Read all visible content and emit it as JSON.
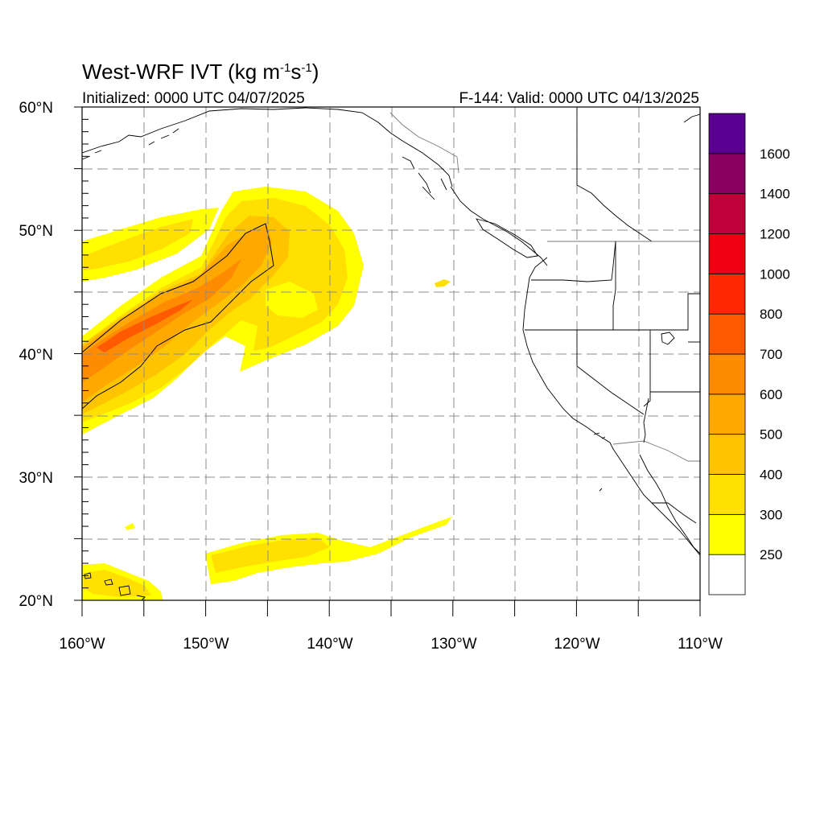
{
  "title": "West-WRF IVT (kg m",
  "title_sup1": "-1",
  "title_mid": "s",
  "title_sup2": "-1",
  "title_end": ")",
  "initialized": "Initialized: 0000 UTC 04/07/2025",
  "valid": "F-144: Valid: 0000 UTC 04/13/2025",
  "map": {
    "lon_range": [
      -160,
      -110
    ],
    "lat_range": [
      20,
      60
    ],
    "lon_labels": [
      "160°W",
      "150°W",
      "140°W",
      "130°W",
      "120°W",
      "110°W"
    ],
    "lat_labels": [
      "20°N",
      "30°N",
      "40°N",
      "50°N",
      "60°N"
    ],
    "grid_spacing_deg": 5,
    "grid_style": "dashed gray"
  },
  "colorbar": {
    "labels": [
      "250",
      "300",
      "400",
      "500",
      "600",
      "700",
      "800",
      "1000",
      "1200",
      "1400",
      "1600"
    ],
    "colors": [
      "#ffffff",
      "#ffff00",
      "#ffe000",
      "#ffc400",
      "#ffa800",
      "#ff8c00",
      "#ff5a00",
      "#ff2800",
      "#ee0010",
      "#c00038",
      "#8a0060",
      "#5a0090"
    ]
  },
  "chart_data": {
    "type": "heatmap",
    "variable": "IVT",
    "units": "kg m-1 s-1",
    "levels": [
      250,
      300,
      400,
      500,
      600,
      700,
      800,
      1000,
      1200,
      1400,
      1600
    ],
    "features": [
      {
        "region": "atmospheric river axis, 160W 40N to 145W 50N",
        "max_class": "600-700"
      },
      {
        "region": "comma head, 147W-137W 40N-53N",
        "max_class": "300-400"
      },
      {
        "region": "northwest band near 160W-152W 47N-50N",
        "max_class": "300-400"
      },
      {
        "region": "subtropical band near 150W-130W 22N-26N",
        "max_class": "300-400"
      },
      {
        "region": "near Hawaii, 160W-154W 20N-22N",
        "max_class": "300-400"
      }
    ]
  }
}
